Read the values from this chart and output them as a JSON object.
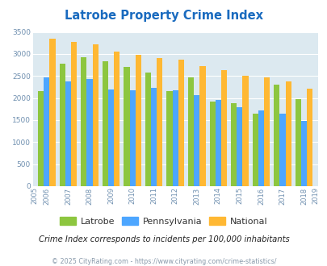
{
  "title": "Latrobe Property Crime Index",
  "years": [
    2005,
    2006,
    2007,
    2008,
    2009,
    2010,
    2011,
    2012,
    2013,
    2014,
    2015,
    2016,
    2017,
    2018,
    2019
  ],
  "latrobe": [
    null,
    2150,
    2775,
    2925,
    2840,
    2700,
    2575,
    2150,
    2475,
    1925,
    1875,
    1640,
    2300,
    1975,
    null
  ],
  "pennsylvania": [
    null,
    2475,
    2375,
    2425,
    2200,
    2175,
    2225,
    2175,
    2075,
    1950,
    1800,
    1725,
    1650,
    1490,
    null
  ],
  "national": [
    null,
    3350,
    3275,
    3225,
    3050,
    2975,
    2900,
    2875,
    2725,
    2625,
    2500,
    2475,
    2375,
    2210,
    null
  ],
  "latrobe_color": "#8dc63f",
  "pennsylvania_color": "#4da6ff",
  "national_color": "#ffb833",
  "bg_color": "#dce9f0",
  "title_color": "#1a6bbf",
  "ylim": [
    0,
    3500
  ],
  "yticks": [
    0,
    500,
    1000,
    1500,
    2000,
    2500,
    3000,
    3500
  ],
  "note": "Crime Index corresponds to incidents per 100,000 inhabitants",
  "copyright": "© 2025 CityRating.com - https://www.cityrating.com/crime-statistics/"
}
